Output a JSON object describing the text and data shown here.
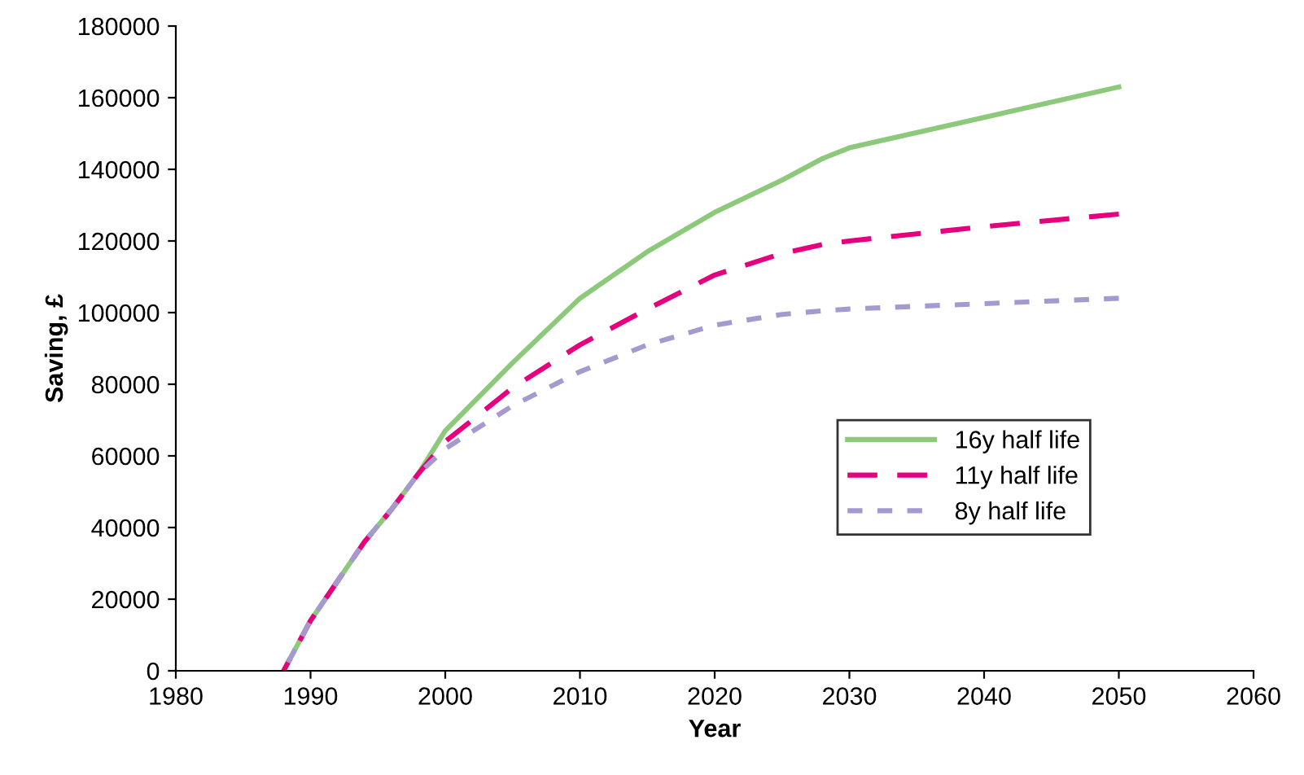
{
  "chart_data": {
    "type": "line",
    "xlabel": "Year",
    "ylabel": "Saving, £",
    "xlim": [
      1980,
      2060
    ],
    "ylim": [
      0,
      180000
    ],
    "xticks": [
      1980,
      1990,
      2000,
      2010,
      2020,
      2030,
      2040,
      2050,
      2060
    ],
    "yticks": [
      0,
      20000,
      40000,
      60000,
      80000,
      100000,
      120000,
      140000,
      160000,
      180000
    ],
    "grid": false,
    "legend": "right",
    "x": [
      1988,
      1990,
      1992,
      1994,
      1996,
      1998,
      2000,
      2005,
      2010,
      2015,
      2020,
      2025,
      2028,
      2030,
      2040,
      2050
    ],
    "series": [
      {
        "name": "16y half life",
        "color": "#8cc97a",
        "line_style": "solid",
        "values": [
          0,
          14000,
          25000,
          36000,
          45000,
          55000,
          67000,
          86000,
          104000,
          117000,
          128000,
          137000,
          143000,
          146000,
          154500,
          163000
        ]
      },
      {
        "name": "11y half life",
        "color": "#e6007e",
        "line_style": "dashed",
        "values": [
          0,
          14000,
          25000,
          36000,
          45000,
          55000,
          64000,
          79000,
          91000,
          101000,
          110500,
          116500,
          119000,
          120000,
          124000,
          127500
        ]
      },
      {
        "name": "8y half life",
        "color": "#a59ad0",
        "line_style": "dotted",
        "values": [
          0,
          14000,
          25000,
          36000,
          45000,
          55000,
          62000,
          74000,
          83500,
          91000,
          96500,
          99500,
          100500,
          101000,
          102500,
          104000
        ]
      }
    ]
  }
}
